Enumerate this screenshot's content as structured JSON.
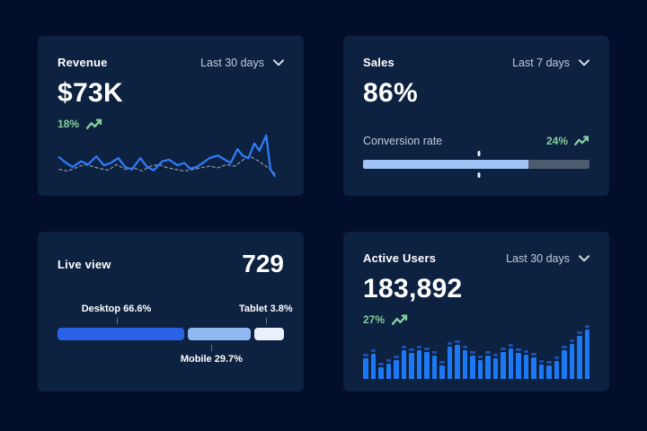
{
  "colors": {
    "page_bg": "#030f2a",
    "card_bg": "#0d2140",
    "text_primary": "#ffffff",
    "text_muted": "#c0ccdd",
    "positive": "#84cf9c",
    "line_current": "#2e7bf6",
    "line_previous": "#8593a6",
    "progress_fill": "#9fc3f5",
    "progress_track": "#4e5c70",
    "bar_fill": "#1d79f3",
    "bar_cap": "#1d4fae"
  },
  "icons": {
    "range_dropdown": "chevron-down",
    "positive_trend": "trending-up-arrow"
  },
  "cards": [
    {
      "title": "Revenue",
      "range": "Last 30 days",
      "value": "$73K",
      "delta": "18%"
    },
    {
      "title": "Sales",
      "range": "Last 7 days",
      "value": "86%",
      "metric_label": "Conversion rate",
      "delta": "24%"
    },
    {
      "title": "Live view",
      "value": "729"
    },
    {
      "title": "Active Users",
      "range": "Last 30 days",
      "value": "183,892",
      "delta": "27%"
    }
  ],
  "chart_data": [
    {
      "card": "Revenue",
      "type": "line",
      "x_range": [
        0,
        268
      ],
      "y_range": [
        0,
        62
      ],
      "grid": false,
      "axes_hidden": true,
      "series": [
        {
          "name": "current",
          "style": "solid",
          "color": "#2e7bf6",
          "points": [
            [
              2,
              30
            ],
            [
              10,
              37
            ],
            [
              18,
              42
            ],
            [
              28,
              35
            ],
            [
              36,
              39
            ],
            [
              46,
              29
            ],
            [
              55,
              40
            ],
            [
              63,
              37
            ],
            [
              72,
              31
            ],
            [
              80,
              42
            ],
            [
              88,
              45
            ],
            [
              98,
              31
            ],
            [
              106,
              42
            ],
            [
              114,
              46
            ],
            [
              124,
              35
            ],
            [
              132,
              33
            ],
            [
              142,
              40
            ],
            [
              150,
              37
            ],
            [
              157,
              44
            ],
            [
              165,
              42
            ],
            [
              172,
              37
            ],
            [
              180,
              31
            ],
            [
              190,
              28
            ],
            [
              198,
              33
            ],
            [
              205,
              37
            ],
            [
              213,
              20
            ],
            [
              219,
              28
            ],
            [
              226,
              31
            ],
            [
              233,
              13
            ],
            [
              239,
              22
            ],
            [
              247,
              3
            ],
            [
              252,
              45
            ],
            [
              257,
              53
            ]
          ]
        },
        {
          "name": "previous",
          "style": "dashed",
          "color": "#8593a6",
          "points": [
            [
              2,
              45
            ],
            [
              12,
              47
            ],
            [
              22,
              43
            ],
            [
              32,
              39
            ],
            [
              40,
              41
            ],
            [
              50,
              44
            ],
            [
              60,
              46
            ],
            [
              70,
              39
            ],
            [
              80,
              45
            ],
            [
              90,
              43
            ],
            [
              100,
              47
            ],
            [
              110,
              41
            ],
            [
              120,
              39
            ],
            [
              130,
              43
            ],
            [
              140,
              45
            ],
            [
              150,
              47
            ],
            [
              160,
              45
            ],
            [
              170,
              43
            ],
            [
              180,
              41
            ],
            [
              190,
              43
            ],
            [
              200,
              39
            ],
            [
              210,
              41
            ],
            [
              220,
              33
            ],
            [
              228,
              29
            ],
            [
              238,
              35
            ],
            [
              248,
              42
            ],
            [
              257,
              50
            ]
          ]
        }
      ]
    },
    {
      "card": "Sales",
      "type": "progress",
      "percent": 73,
      "marker_percent": 51
    },
    {
      "card": "Live view",
      "type": "stacked-bar",
      "segments": [
        {
          "label": "Desktop 66.6%",
          "value": 66.6,
          "color": "#2b63e8",
          "flex": 56,
          "label_side": "top",
          "anchor_pct": 26
        },
        {
          "label": "Mobile 29.7%",
          "value": 29.7,
          "color": "#8fb7f0",
          "flex": 28,
          "label_side": "bottom",
          "anchor_pct": 68
        },
        {
          "label": "Tablet 3.8%",
          "value": 3.8,
          "color": "#e9f1fd",
          "flex": 13,
          "label_side": "top",
          "anchor_pct": 92
        }
      ]
    },
    {
      "card": "Active Users",
      "type": "bar",
      "ylim": [
        0,
        100
      ],
      "values": [
        40,
        48,
        22,
        30,
        36,
        55,
        50,
        55,
        52,
        44,
        26,
        62,
        66,
        55,
        44,
        36,
        44,
        40,
        52,
        58,
        50,
        46,
        42,
        28,
        26,
        34,
        55,
        68,
        82,
        95
      ]
    }
  ]
}
